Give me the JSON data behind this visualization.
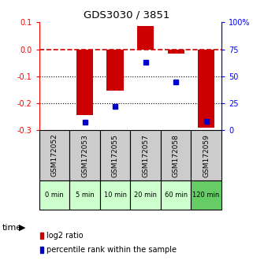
{
  "title": "GDS3030 / 3851",
  "samples": [
    "GSM172052",
    "GSM172053",
    "GSM172055",
    "GSM172057",
    "GSM172058",
    "GSM172059"
  ],
  "time_labels": [
    "0 min",
    "5 min",
    "10 min",
    "20 min",
    "60 min",
    "120 min"
  ],
  "log2_ratio": [
    0.0,
    -0.245,
    -0.155,
    0.085,
    -0.015,
    -0.29
  ],
  "percentile_rank": [
    null,
    7,
    22,
    63,
    45,
    8
  ],
  "ylim_left": [
    -0.3,
    0.1
  ],
  "ylim_right": [
    0,
    100
  ],
  "yticks_left": [
    0.1,
    0.0,
    -0.1,
    -0.2,
    -0.3
  ],
  "yticks_right": [
    100,
    75,
    50,
    25,
    0
  ],
  "bar_color": "#cc0000",
  "dot_color": "#0000cc",
  "dashed_line_color": "#cc0000",
  "bg_color": "#ffffff",
  "plot_bg": "#ffffff",
  "time_bg_light": "#ccffcc",
  "time_bg_dark": "#66cc66",
  "sample_bg": "#cccccc",
  "bar_width": 0.55
}
